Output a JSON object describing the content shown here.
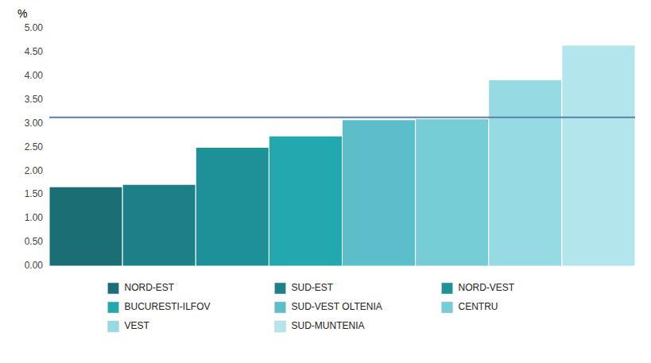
{
  "chart_data": {
    "type": "bar",
    "ylabel": "%",
    "categories": [
      "NORD-EST",
      "SUD-EST",
      "NORD-VEST",
      "BUCURESTI-ILFOV",
      "SUD-VEST OLTENIA",
      "CENTRU",
      "VEST",
      "SUD-MUNTENIA"
    ],
    "values": [
      1.67,
      1.72,
      2.5,
      2.74,
      3.08,
      3.1,
      3.92,
      4.65
    ],
    "colors": [
      "#1b6f74",
      "#1d8088",
      "#1e9198",
      "#23a8b0",
      "#5bbec8",
      "#76cdd6",
      "#96dae3",
      "#b3e5ed"
    ],
    "reference_line": {
      "value": 3.13,
      "color": "#5b7fa6"
    },
    "ylim": [
      0,
      5.0
    ],
    "yticks": [
      {
        "value": 0.0,
        "label": "0.00"
      },
      {
        "value": 0.5,
        "label": "0.50"
      },
      {
        "value": 1.0,
        "label": "1.00"
      },
      {
        "value": 1.5,
        "label": "1.50"
      },
      {
        "value": 2.0,
        "label": "2.00"
      },
      {
        "value": 2.5,
        "label": "2.50"
      },
      {
        "value": 3.0,
        "label": "3.00"
      },
      {
        "value": 3.5,
        "label": "3.50"
      },
      {
        "value": 4.0,
        "label": "4.00"
      },
      {
        "value": 4.5,
        "label": "4.50"
      },
      {
        "value": 5.0,
        "label": "5.00"
      }
    ],
    "grid": false,
    "legend": "bottom",
    "tick_labels": "y"
  }
}
